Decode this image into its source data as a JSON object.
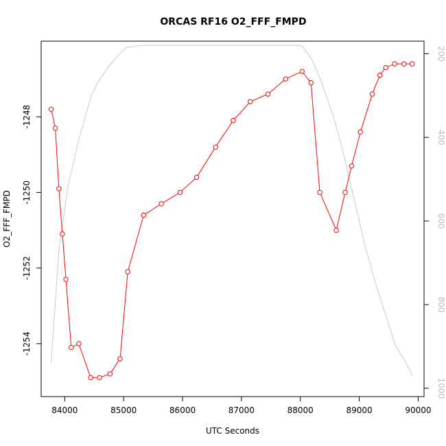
{
  "chart_data": {
    "type": "line",
    "title": "ORCAS RF16 O2_FFF_FMPD",
    "xlabel": "UTC Seconds",
    "ylabel": "O2_FFF_FMPD",
    "xlim": [
      83600,
      90100
    ],
    "ylim": [
      -1255.4,
      -1246.0
    ],
    "y2lim": [
      1020,
      170
    ],
    "x_ticks": [
      84000,
      85000,
      86000,
      87000,
      88000,
      89000,
      90000
    ],
    "x_tick_labels": [
      "84000",
      "85000",
      "86000",
      "87000",
      "88000",
      "89000",
      "90000"
    ],
    "y_ticks": [
      -1248,
      -1250,
      -1252,
      -1254
    ],
    "y_tick_labels": [
      "-1248",
      "-1250",
      "-1252",
      "-1254"
    ],
    "y2_ticks": [
      200,
      400,
      600,
      800,
      1000
    ],
    "y2_tick_labels": [
      "200",
      "400",
      "600",
      "800",
      "1000"
    ],
    "grid": false,
    "series": [
      {
        "axis": "left",
        "color": "#ff0000",
        "marker": "open-circle",
        "x": [
          83770,
          83840,
          83900,
          83960,
          84020,
          84110,
          84240,
          84440,
          84590,
          84770,
          84940,
          85070,
          85340,
          85640,
          85960,
          86240,
          86560,
          86860,
          87150,
          87450,
          87750,
          88030,
          88180,
          88330,
          88610,
          88760,
          88870,
          89020,
          89220,
          89350,
          89450,
          89600,
          89760,
          89900
        ],
        "y": [
          -1247.8,
          -1248.3,
          -1249.9,
          -1251.1,
          -1252.3,
          -1254.1,
          -1254.0,
          -1254.9,
          -1254.9,
          -1254.8,
          -1254.4,
          -1252.1,
          -1250.6,
          -1250.3,
          -1250.0,
          -1249.6,
          -1248.8,
          -1248.1,
          -1247.6,
          -1247.4,
          -1247.0,
          -1246.8,
          -1247.1,
          -1250.0,
          -1251.0,
          -1250.0,
          -1249.3,
          -1248.4,
          -1247.4,
          -1246.9,
          -1246.7,
          -1246.6,
          -1246.6,
          -1246.6
        ]
      },
      {
        "axis": "right",
        "color": "#c8c8c8",
        "marker": "none",
        "x": [
          83770,
          83900,
          84050,
          84230,
          84450,
          84600,
          84750,
          84930,
          85050,
          85300,
          85500,
          86000,
          86500,
          87000,
          87500,
          88000,
          88050,
          88200,
          88350,
          88550,
          88700,
          88900,
          89100,
          89300,
          89620,
          89800,
          89900
        ],
        "y": [
          940,
          670,
          520,
          410,
          300,
          260,
          230,
          200,
          185,
          180,
          180,
          180,
          180,
          180,
          180,
          180,
          185,
          215,
          265,
          345,
          420,
          540,
          660,
          760,
          900,
          940,
          970
        ]
      }
    ]
  }
}
